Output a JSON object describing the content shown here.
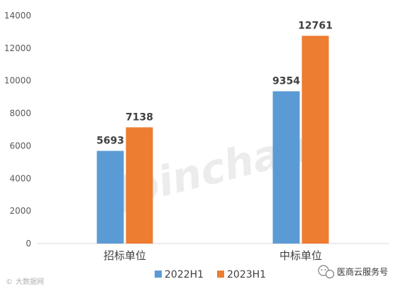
{
  "chart_data": {
    "type": "bar",
    "categories": [
      "招标单位",
      "中标单位"
    ],
    "series": [
      {
        "name": "2022H1",
        "color": "#5b9bd5",
        "values": [
          5693,
          9354
        ]
      },
      {
        "name": "2023H1",
        "color": "#ed7d31",
        "values": [
          7138,
          12761
        ]
      }
    ],
    "ylim": [
      0,
      14000
    ],
    "yticks": [
      0,
      2000,
      4000,
      6000,
      8000,
      10000,
      12000,
      14000
    ],
    "grid": false,
    "legend": "bottom"
  },
  "watermark": "Joinchain",
  "source_mark": "大数据网",
  "account_name": "医商云服务号",
  "account_icon": "wechat-icon"
}
